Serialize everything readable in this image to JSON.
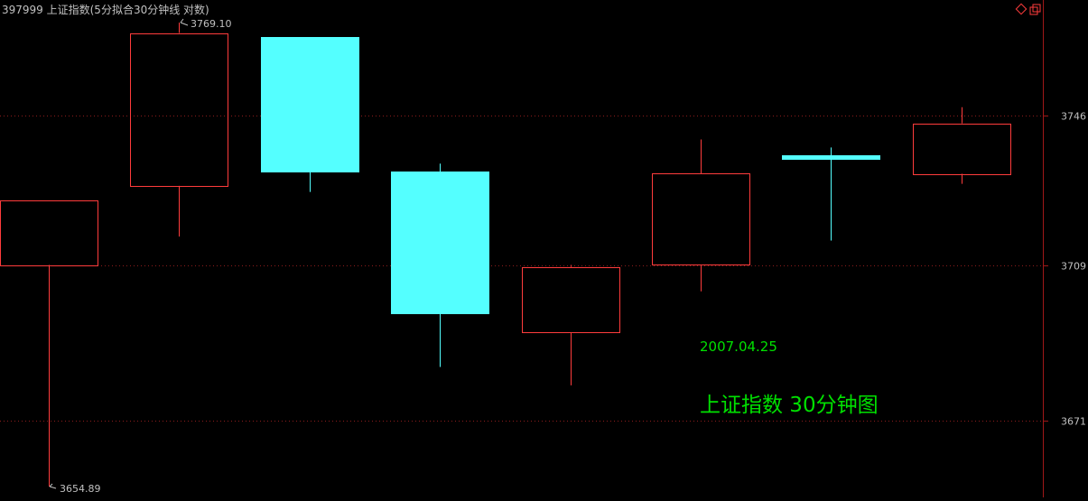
{
  "header": {
    "title": "397999 上证指数(5分拟合30分钟线 对数)"
  },
  "window_controls": {
    "restore_icon": "diamond-icon",
    "maximize_icon": "window-icon"
  },
  "colors": {
    "background": "#000000",
    "up": "#ff3c3c",
    "down": "#54ffff",
    "grid": "#8c1c1c",
    "axis": "#a01818",
    "text": "#c0c0c0",
    "annotation": "#00e000"
  },
  "annotations": {
    "high_label": "3769.10",
    "low_label": "3654.89",
    "date": "2007.04.25",
    "caption": "上证指数 30分钟图"
  },
  "chart_data": {
    "type": "candlestick",
    "title": "397999 上证指数(5分拟合30分钟线 对数)",
    "scale": "log",
    "ylim": [
      3654.89,
      3769.1
    ],
    "y_ticks": [
      3746,
      3709,
      3671
    ],
    "y_tick_labels": [
      "3746",
      "3709",
      "3671"
    ],
    "grid": true,
    "candles": [
      {
        "open": 3709.0,
        "close": 3725.0,
        "high": 3725.0,
        "low": 3654.89,
        "direction": "up"
      },
      {
        "open": 3728.5,
        "close": 3766.5,
        "high": 3769.1,
        "low": 3716.0,
        "direction": "up"
      },
      {
        "open": 3765.5,
        "close": 3732.0,
        "high": 3765.5,
        "low": 3727.0,
        "direction": "down"
      },
      {
        "open": 3732.0,
        "close": 3697.0,
        "high": 3734.0,
        "low": 3684.0,
        "direction": "down"
      },
      {
        "open": 3692.5,
        "close": 3708.5,
        "high": 3709.0,
        "low": 3679.5,
        "direction": "up"
      },
      {
        "open": 3709.0,
        "close": 3731.5,
        "high": 3740.0,
        "low": 3702.5,
        "direction": "up"
      },
      {
        "open": 3736.0,
        "close": 3735.0,
        "high": 3738.0,
        "low": 3715.0,
        "direction": "down"
      },
      {
        "open": 3731.5,
        "close": 3744.0,
        "high": 3748.0,
        "low": 3729.0,
        "direction": "up"
      }
    ],
    "annotations": [
      "3769.10",
      "3654.89",
      "2007.04.25",
      "上证指数 30分钟图"
    ]
  }
}
